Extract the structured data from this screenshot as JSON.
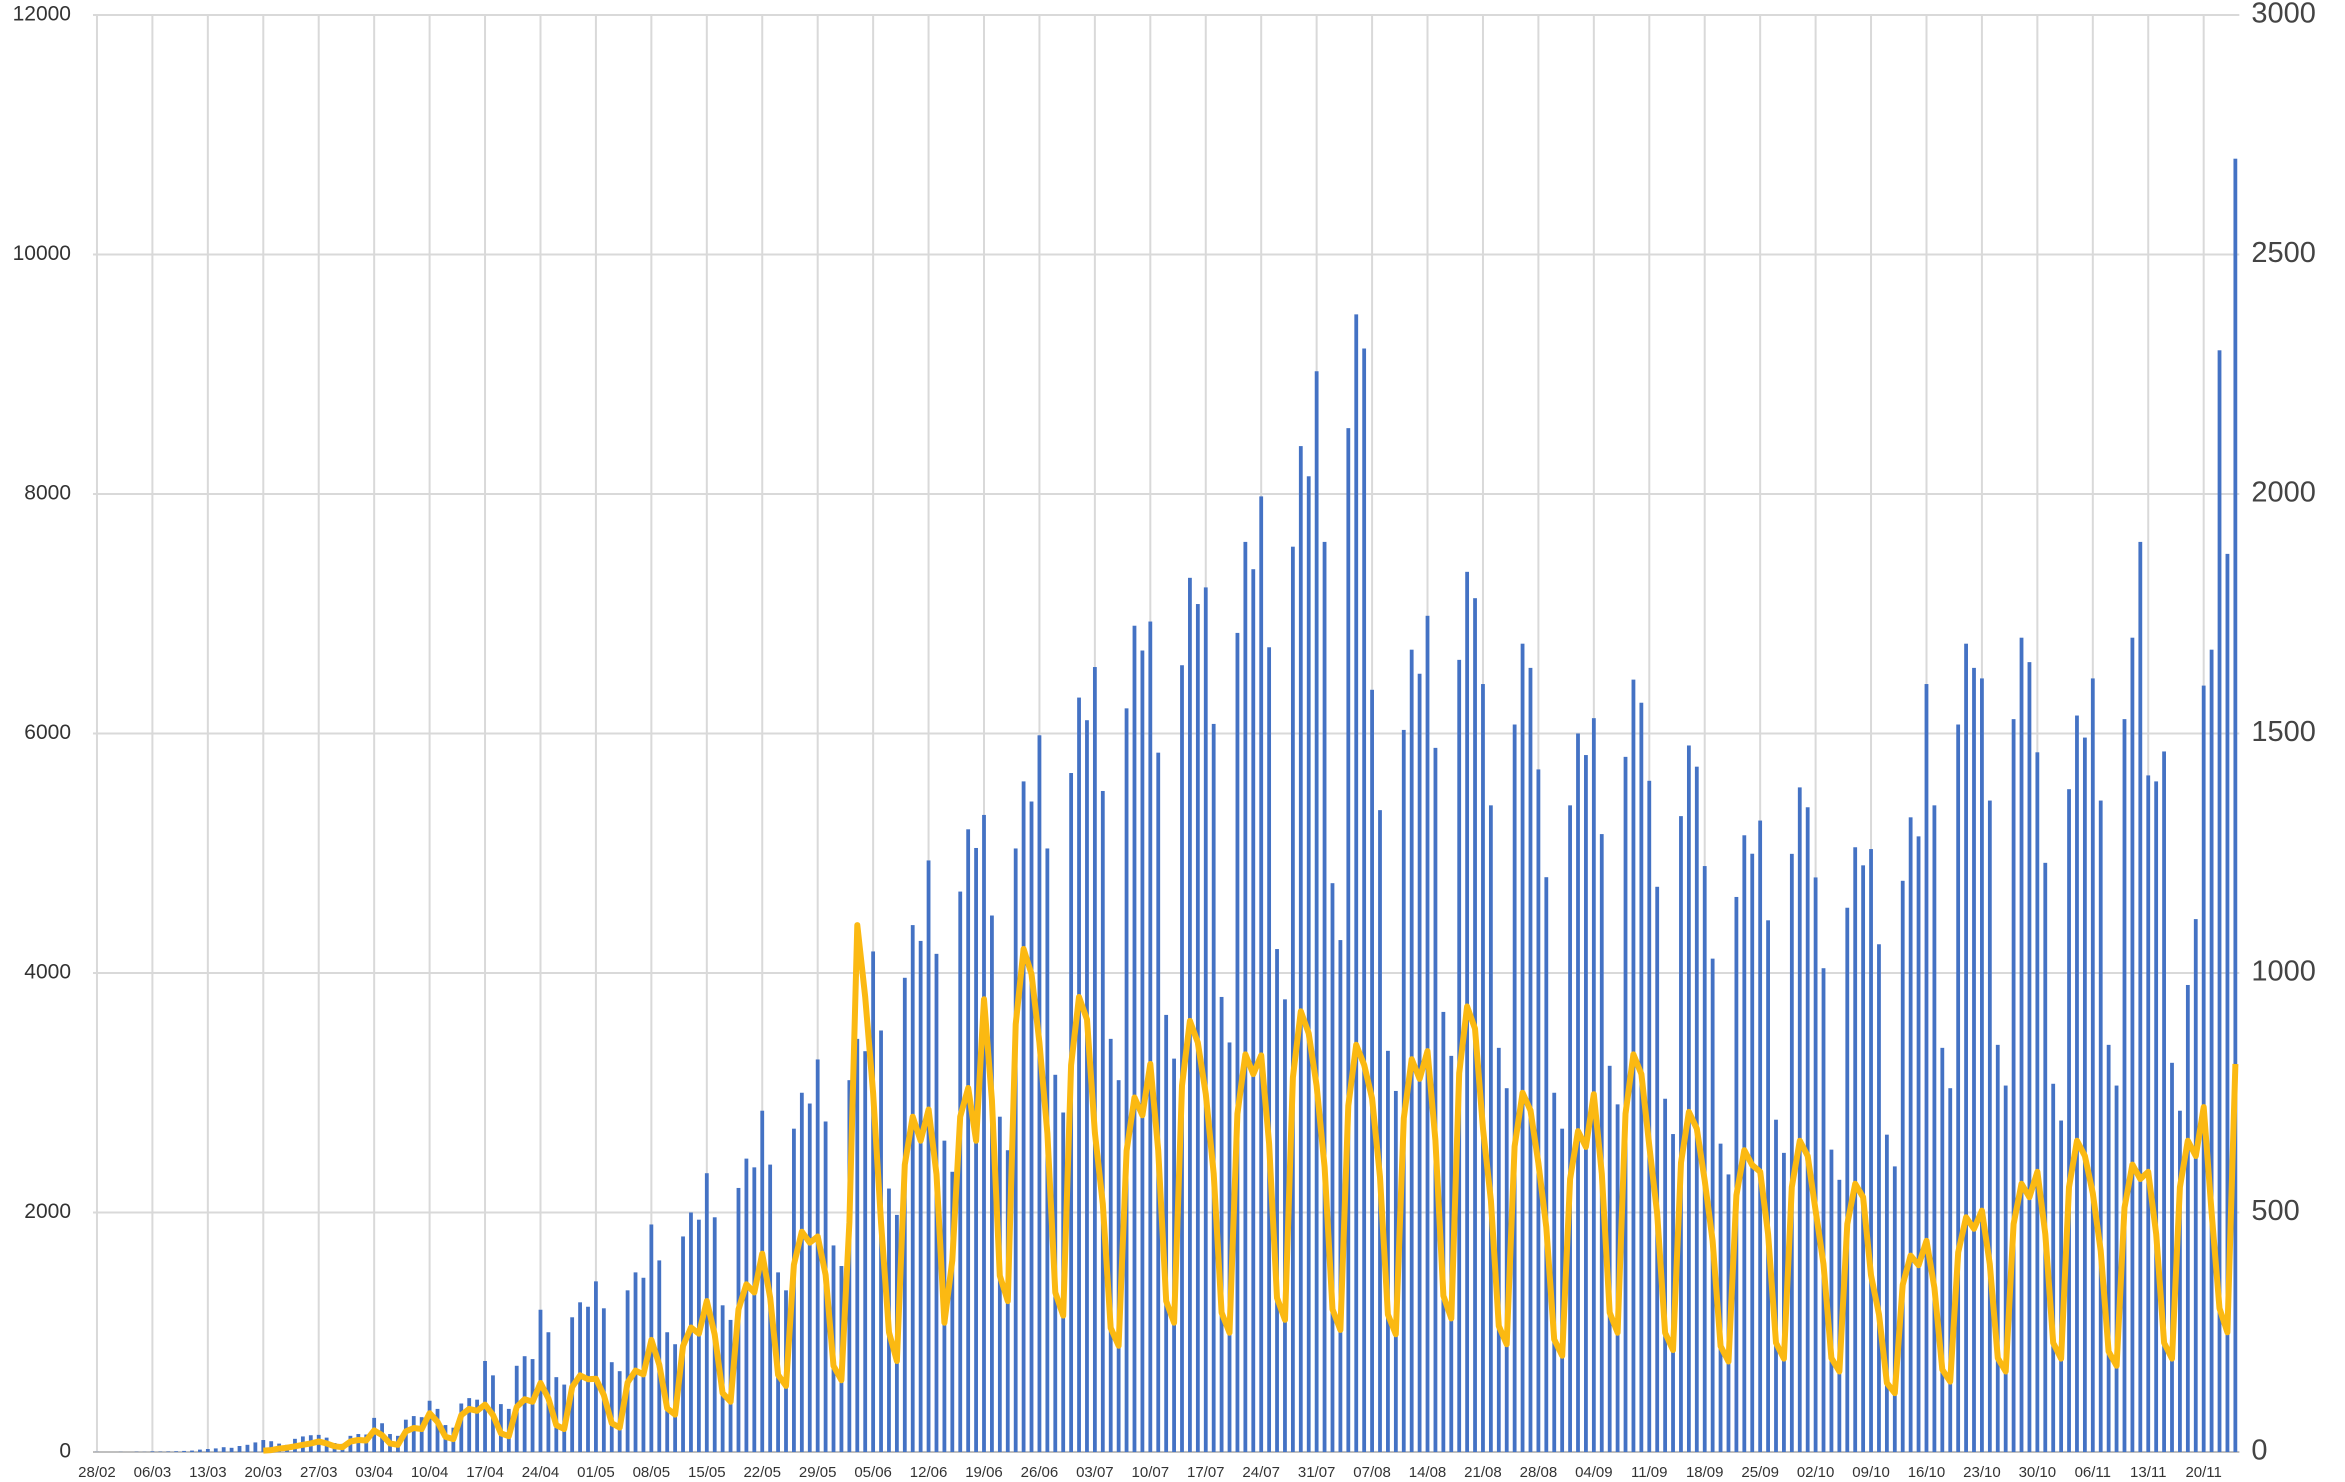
{
  "chart_data": {
    "type": "bar_line",
    "categories": [
      "28/02",
      null,
      null,
      null,
      null,
      null,
      null,
      "06/03",
      null,
      null,
      null,
      null,
      null,
      null,
      "13/03",
      null,
      null,
      null,
      null,
      null,
      null,
      "20/03",
      null,
      null,
      null,
      null,
      null,
      null,
      "27/03",
      null,
      null,
      null,
      null,
      null,
      null,
      "03/04",
      null,
      null,
      null,
      null,
      null,
      null,
      "10/04",
      null,
      null,
      null,
      null,
      null,
      null,
      "17/04",
      null,
      null,
      null,
      null,
      null,
      null,
      "24/04",
      null,
      null,
      null,
      null,
      null,
      null,
      "01/05",
      null,
      null,
      null,
      null,
      null,
      null,
      "08/05",
      null,
      null,
      null,
      null,
      null,
      null,
      "15/05",
      null,
      null,
      null,
      null,
      null,
      null,
      "22/05",
      null,
      null,
      null,
      null,
      null,
      null,
      "29/05",
      null,
      null,
      null,
      null,
      null,
      null,
      "05/06",
      null,
      null,
      null,
      null,
      null,
      null,
      "12/06",
      null,
      null,
      null,
      null,
      null,
      null,
      "19/06",
      null,
      null,
      null,
      null,
      null,
      null,
      "26/06",
      null,
      null,
      null,
      null,
      null,
      null,
      "03/07",
      null,
      null,
      null,
      null,
      null,
      null,
      "10/07",
      null,
      null,
      null,
      null,
      null,
      null,
      "17/07",
      null,
      null,
      null,
      null,
      null,
      null,
      "24/07",
      null,
      null,
      null,
      null,
      null,
      null,
      "31/07",
      null,
      null,
      null,
      null,
      null,
      null,
      "07/08",
      null,
      null,
      null,
      null,
      null,
      null,
      "14/08",
      null,
      null,
      null,
      null,
      null,
      null,
      "21/08",
      null,
      null,
      null,
      null,
      null,
      null,
      "28/08",
      null,
      null,
      null,
      null,
      null,
      null,
      "04/09",
      null,
      null,
      null,
      null,
      null,
      null,
      "11/09",
      null,
      null,
      null,
      null,
      null,
      null,
      "18/09",
      null,
      null,
      null,
      null,
      null,
      null,
      "25/09",
      null,
      null,
      null,
      null,
      null,
      null,
      "02/10",
      null,
      null,
      null,
      null,
      null,
      null,
      "09/10",
      null,
      null,
      null,
      null,
      null,
      null,
      "16/10",
      null,
      null,
      null,
      null,
      null,
      null,
      "23/10",
      null,
      null,
      null,
      null,
      null,
      null,
      "30/10",
      null,
      null,
      null,
      null,
      null,
      null,
      "06/11",
      null,
      null,
      null,
      null,
      null,
      null,
      "13/11",
      null,
      null,
      null,
      null,
      null,
      null,
      "20/11",
      null,
      null,
      null,
      null
    ],
    "series": [
      {
        "type": "bar",
        "color": "#4472c4",
        "values": [
          1,
          0,
          0,
          1,
          0,
          2,
          1,
          5,
          3,
          4,
          6,
          9,
          12,
          20,
          25,
          30,
          40,
          35,
          50,
          60,
          80,
          100,
          90,
          70,
          60,
          110,
          130,
          140,
          143,
          120,
          75,
          68,
          135,
          150,
          146,
          285,
          240,
          150,
          135,
          270,
          300,
          291,
          428,
          360,
          225,
          203,
          405,
          450,
          437,
          760,
          640,
          400,
          360,
          720,
          800,
          776,
          1188,
          1000,
          625,
          563,
          1125,
          1250,
          1213,
          1425,
          1200,
          750,
          675,
          1350,
          1500,
          1455,
          1900,
          1600,
          1000,
          900,
          1800,
          2000,
          1940,
          2328,
          1960,
          1225,
          1103,
          2205,
          2450,
          2377,
          2850,
          2400,
          1500,
          1350,
          2700,
          3000,
          2910,
          3278,
          2760,
          1725,
          1553,
          3105,
          3450,
          3347,
          4180,
          3520,
          2200,
          1980,
          3960,
          4400,
          4268,
          4940,
          4160,
          2600,
          2340,
          4680,
          5200,
          5044,
          5320,
          4480,
          2800,
          2520,
          5040,
          5600,
          5432,
          5985,
          5040,
          3150,
          2835,
          5670,
          6300,
          6111,
          6555,
          5520,
          3450,
          3105,
          6210,
          6900,
          6693,
          6935,
          5840,
          3650,
          3285,
          6570,
          7300,
          7081,
          7220,
          6080,
          3800,
          3420,
          6840,
          7600,
          7372,
          7980,
          6720,
          4200,
          3780,
          7560,
          8400,
          8148,
          9025,
          7600,
          4750,
          4275,
          8550,
          9500,
          9215,
          6365,
          5360,
          3350,
          3015,
          6030,
          6700,
          6499,
          6983,
          5880,
          3675,
          3308,
          6615,
          7350,
          7130,
          6413,
          5400,
          3375,
          3038,
          6075,
          6750,
          6548,
          5700,
          4800,
          3000,
          2700,
          5400,
          6000,
          5820,
          6128,
          5160,
          3225,
          2903,
          5805,
          6450,
          6257,
          5605,
          4720,
          2950,
          2655,
          5310,
          5900,
          5723,
          4893,
          4120,
          2575,
          2318,
          4635,
          5150,
          4996,
          5273,
          4440,
          2775,
          2498,
          4995,
          5550,
          5384,
          4798,
          4040,
          2525,
          2273,
          4545,
          5050,
          4899,
          5035,
          4240,
          2650,
          2385,
          4770,
          5300,
          5141,
          6413,
          5400,
          3375,
          3038,
          6075,
          6750,
          6548,
          6460,
          5440,
          3400,
          3060,
          6120,
          6800,
          6596,
          5843,
          4920,
          3075,
          2768,
          5535,
          6150,
          5966,
          6460,
          5440,
          3400,
          3060,
          6120,
          6800,
          7600,
          5650,
          5600,
          5850,
          3250,
          2850,
          3900,
          4450,
          6400,
          6700,
          9200,
          7500,
          10800
        ]
      },
      {
        "type": "line",
        "color": "#fbb912",
        "axis": "y2",
        "values": [
          null,
          null,
          null,
          null,
          null,
          null,
          null,
          null,
          null,
          null,
          null,
          null,
          null,
          null,
          null,
          null,
          null,
          null,
          null,
          null,
          null,
          3,
          4,
          7,
          9,
          12,
          15,
          18,
          22,
          18,
          12,
          10,
          22,
          25,
          24,
          45,
          35,
          18,
          15,
          43,
          50,
          48,
          81,
          63,
          32,
          27,
          77,
          90,
          86,
          99,
          77,
          39,
          33,
          94,
          110,
          105,
          144,
          112,
          56,
          48,
          136,
          160,
          152,
          153,
          119,
          60,
          51,
          145,
          170,
          162,
          234,
          182,
          91,
          78,
          221,
          260,
          247,
          315,
          245,
          123,
          105,
          298,
          350,
          333,
          414,
          322,
          161,
          138,
          391,
          460,
          437,
          450,
          370,
          180,
          150,
          480,
          1100,
          950,
          750,
          480,
          250,
          190,
          600,
          700,
          650,
          715,
          580,
          270,
          400,
          700,
          760,
          650,
          945,
          735,
          368,
          315,
          893,
          1050,
          998,
          855,
          665,
          333,
          285,
          808,
          950,
          903,
          666,
          518,
          259,
          222,
          629,
          740,
          703,
          810,
          630,
          315,
          270,
          765,
          900,
          855,
          747,
          581,
          291,
          249,
          706,
          830,
          789,
          828,
          644,
          322,
          276,
          782,
          920,
          874,
          765,
          595,
          298,
          255,
          723,
          850,
          808,
          738,
          574,
          287,
          246,
          697,
          820,
          779,
          837,
          651,
          326,
          279,
          791,
          930,
          884,
          675,
          525,
          263,
          225,
          638,
          750,
          713,
          603,
          469,
          235,
          201,
          570,
          670,
          637,
          747,
          581,
          291,
          249,
          706,
          830,
          789,
          639,
          497,
          249,
          213,
          604,
          710,
          675,
          567,
          441,
          221,
          189,
          536,
          630,
          599,
          585,
          455,
          228,
          195,
          553,
          650,
          618,
          504,
          392,
          196,
          168,
          476,
          560,
          532,
          369,
          287,
          144,
          123,
          349,
          410,
          390,
          441,
          343,
          172,
          147,
          417,
          490,
          466,
          504,
          392,
          196,
          168,
          476,
          560,
          532,
          585,
          455,
          228,
          195,
          553,
          650,
          618,
          540,
          420,
          210,
          180,
          510,
          600,
          570,
          585,
          455,
          228,
          195,
          553,
          650,
          618,
          720,
          500,
          300,
          250,
          810
        ]
      }
    ],
    "ylim": [
      0,
      12000
    ],
    "yticks": [
      0,
      2000,
      4000,
      6000,
      8000,
      10000,
      12000
    ],
    "y2lim": [
      0,
      3000
    ],
    "y2ticks": [
      0,
      500,
      1000,
      1500,
      2000,
      2500,
      3000
    ],
    "grid": true
  }
}
